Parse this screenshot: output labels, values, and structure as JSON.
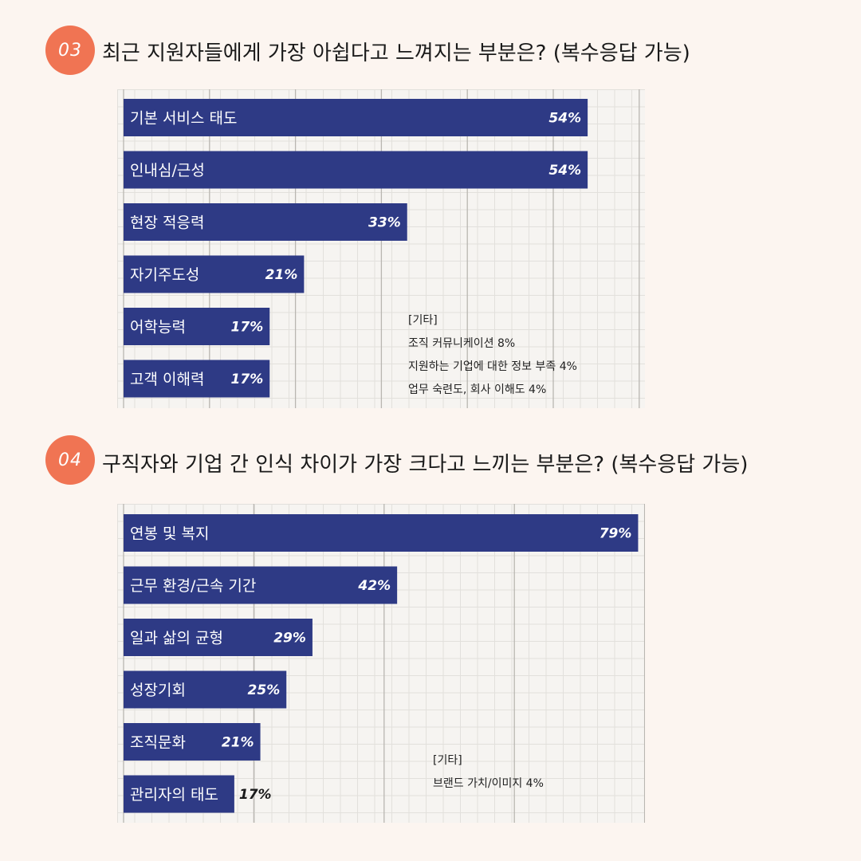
{
  "q3": {
    "badge": "03",
    "question": "최근 지원자들에게 가장 아쉽다고 느껴지는 부분은? (복수응답 가능)",
    "others_title": "[기타]",
    "others": [
      "조직 커뮤니케이션 8%",
      "지원하는 기업에 대한 정보 부족 4%",
      "업무 숙련도, 회사 이해도 4%"
    ]
  },
  "q4": {
    "badge": "04",
    "question": "구직자와 기업 간 인식 차이가 가장 크다고 느끼는 부분은? (복수응답 가능)",
    "others_title": "[기타]",
    "others": [
      "브랜드 가치/이미지 4%"
    ]
  },
  "chart_data": [
    {
      "type": "bar",
      "orientation": "horizontal",
      "categories": [
        "기본 서비스 태도",
        "인내심/근성",
        "현장 적응력",
        "자기주도성",
        "어학능력",
        "고객 이해력"
      ],
      "values": [
        54,
        54,
        33,
        21,
        17,
        17
      ],
      "value_labels": [
        "54%",
        "54%",
        "33%",
        "21%",
        "17%",
        "17%"
      ],
      "xlim": [
        0,
        60
      ],
      "grid": true,
      "bar_color": "#2e3a85"
    },
    {
      "type": "bar",
      "orientation": "horizontal",
      "categories": [
        "연봉 및 복지",
        "근무 환경/근속 기간",
        "일과 삶의 균형",
        "성장기회",
        "조직문화",
        "관리자의 태도"
      ],
      "values": [
        79,
        42,
        29,
        25,
        21,
        17
      ],
      "value_labels": [
        "79%",
        "42%",
        "29%",
        "25%",
        "21%",
        "17%"
      ],
      "xlim": [
        0,
        80
      ],
      "grid": true,
      "bar_color": "#2e3a85"
    }
  ]
}
